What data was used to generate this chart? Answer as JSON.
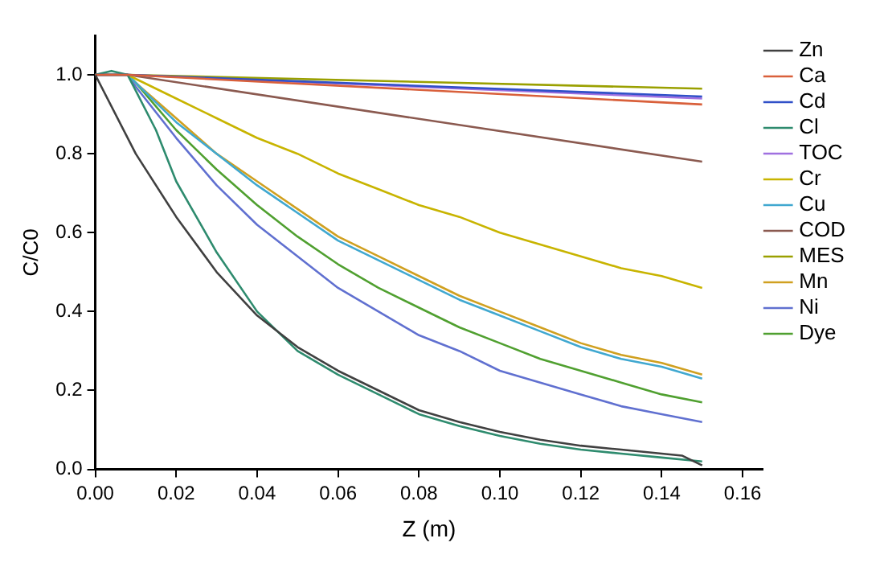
{
  "chart_data": {
    "type": "line",
    "xlabel": "Z (m)",
    "ylabel": "C/C0",
    "xlim": [
      0,
      0.165
    ],
    "ylim": [
      0,
      1.1
    ],
    "xticks": [
      {
        "value": 0,
        "label": "0.00"
      },
      {
        "value": 0.02,
        "label": "0.02"
      },
      {
        "value": 0.04,
        "label": "0.04"
      },
      {
        "value": 0.06,
        "label": "0.06"
      },
      {
        "value": 0.08,
        "label": "0.08"
      },
      {
        "value": 0.1,
        "label": "0.10"
      },
      {
        "value": 0.12,
        "label": "0.12"
      },
      {
        "value": 0.14,
        "label": "0.14"
      },
      {
        "value": 0.16,
        "label": "0.16"
      }
    ],
    "yticks": [
      {
        "value": 0,
        "label": "0.0"
      },
      0.2,
      0.4,
      0.6,
      0.8,
      {
        "value": 1,
        "label": "1.0"
      }
    ],
    "grid": false,
    "legend": "right",
    "marker": "none",
    "line_style": "solid",
    "series": [
      {
        "name": "Zn",
        "color": "#404040",
        "x": [
          0,
          0.01,
          0.02,
          0.03,
          0.04,
          0.05,
          0.06,
          0.07,
          0.08,
          0.09,
          0.1,
          0.11,
          0.12,
          0.13,
          0.14,
          0.145,
          0.15
        ],
        "values": [
          1,
          0.8,
          0.64,
          0.5,
          0.39,
          0.31,
          0.25,
          0.2,
          0.15,
          0.12,
          0.095,
          0.075,
          0.06,
          0.05,
          0.04,
          0.035,
          0.01
        ]
      },
      {
        "name": "Ca",
        "color": "#d9603b",
        "x": [
          0,
          0.008,
          0.15
        ],
        "values": [
          1,
          1,
          0.925
        ]
      },
      {
        "name": "Cd",
        "color": "#3050c8",
        "x": [
          0,
          0.008,
          0.15
        ],
        "values": [
          1,
          1,
          0.945
        ]
      },
      {
        "name": "Cl",
        "color": "#2e8b6e",
        "x": [
          0,
          0.004,
          0.008,
          0.015,
          0.02,
          0.03,
          0.04,
          0.05,
          0.06,
          0.07,
          0.08,
          0.09,
          0.1,
          0.11,
          0.12,
          0.13,
          0.14,
          0.15
        ],
        "values": [
          1,
          1.01,
          1,
          0.86,
          0.73,
          0.55,
          0.4,
          0.3,
          0.24,
          0.19,
          0.14,
          0.11,
          0.085,
          0.065,
          0.05,
          0.04,
          0.03,
          0.02
        ]
      },
      {
        "name": "TOC",
        "color": "#a070e0",
        "x": [
          0,
          0.008,
          0.15
        ],
        "values": [
          1,
          1,
          0.94
        ]
      },
      {
        "name": "Cr",
        "color": "#c8b400",
        "x": [
          0,
          0.008,
          0.01,
          0.02,
          0.03,
          0.04,
          0.05,
          0.06,
          0.07,
          0.08,
          0.09,
          0.1,
          0.11,
          0.12,
          0.13,
          0.14,
          0.15
        ],
        "values": [
          1,
          1,
          0.99,
          0.94,
          0.89,
          0.84,
          0.8,
          0.75,
          0.71,
          0.67,
          0.64,
          0.6,
          0.57,
          0.54,
          0.51,
          0.49,
          0.46
        ]
      },
      {
        "name": "Cu",
        "color": "#40a8d0",
        "x": [
          0,
          0.008,
          0.01,
          0.02,
          0.03,
          0.04,
          0.05,
          0.06,
          0.07,
          0.08,
          0.09,
          0.1,
          0.11,
          0.12,
          0.13,
          0.14,
          0.15
        ],
        "values": [
          1,
          1,
          0.98,
          0.88,
          0.8,
          0.72,
          0.65,
          0.58,
          0.53,
          0.48,
          0.43,
          0.39,
          0.35,
          0.31,
          0.28,
          0.26,
          0.23
        ]
      },
      {
        "name": "COD",
        "color": "#8b5a50",
        "x": [
          0,
          0.008,
          0.15
        ],
        "values": [
          1,
          1,
          0.78
        ]
      },
      {
        "name": "MES",
        "color": "#9aa000",
        "x": [
          0,
          0.008,
          0.15
        ],
        "values": [
          1,
          1,
          0.965
        ]
      },
      {
        "name": "Mn",
        "color": "#d0a020",
        "x": [
          0,
          0.008,
          0.01,
          0.02,
          0.03,
          0.04,
          0.05,
          0.06,
          0.07,
          0.08,
          0.09,
          0.1,
          0.11,
          0.12,
          0.13,
          0.14,
          0.15
        ],
        "values": [
          1,
          1,
          0.98,
          0.89,
          0.8,
          0.73,
          0.66,
          0.59,
          0.54,
          0.49,
          0.44,
          0.4,
          0.36,
          0.32,
          0.29,
          0.27,
          0.24
        ]
      },
      {
        "name": "Ni",
        "color": "#6070d0",
        "x": [
          0,
          0.008,
          0.01,
          0.02,
          0.03,
          0.04,
          0.05,
          0.06,
          0.07,
          0.08,
          0.09,
          0.1,
          0.11,
          0.12,
          0.13,
          0.14,
          0.15
        ],
        "values": [
          1,
          1,
          0.97,
          0.84,
          0.72,
          0.62,
          0.54,
          0.46,
          0.4,
          0.34,
          0.3,
          0.25,
          0.22,
          0.19,
          0.16,
          0.14,
          0.12
        ]
      },
      {
        "name": "Dye",
        "color": "#50a030",
        "x": [
          0,
          0.008,
          0.01,
          0.02,
          0.03,
          0.04,
          0.05,
          0.06,
          0.07,
          0.08,
          0.09,
          0.1,
          0.11,
          0.12,
          0.13,
          0.14,
          0.15
        ],
        "values": [
          1,
          1,
          0.98,
          0.86,
          0.76,
          0.67,
          0.59,
          0.52,
          0.46,
          0.41,
          0.36,
          0.32,
          0.28,
          0.25,
          0.22,
          0.19,
          0.17
        ]
      }
    ]
  }
}
